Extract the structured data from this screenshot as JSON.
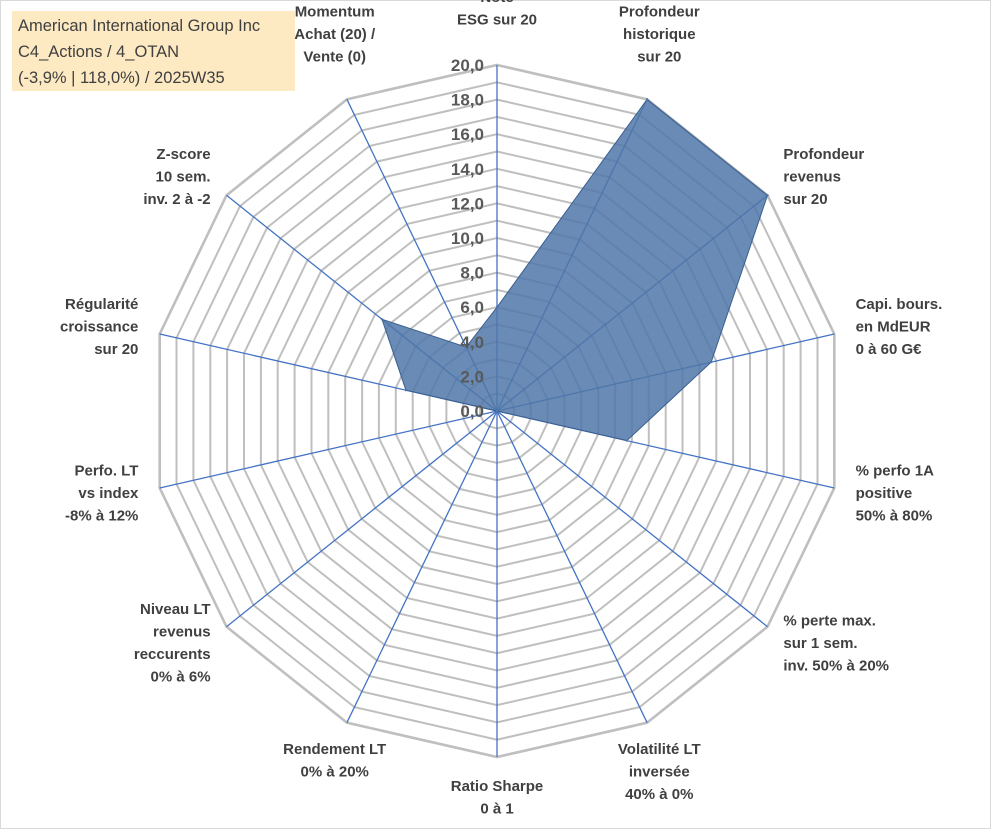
{
  "info_box": {
    "company": "American International Group Inc",
    "classification": "C4_Actions / 4_OTAN",
    "period": "(-3,9% | 118,0%) / 2025W35"
  },
  "chart_data": {
    "type": "radar",
    "title": "",
    "rlim": [
      0,
      20
    ],
    "r_ticks": [
      "0,0",
      "2,0",
      "4,0",
      "6,0",
      "8,0",
      "10,0",
      "12,0",
      "14,0",
      "16,0",
      "18,0",
      "20,0"
    ],
    "grid": true,
    "axes": [
      [
        "Note",
        "ESG sur 20"
      ],
      [
        "Profondeur",
        "historique",
        "sur 20"
      ],
      [
        "Profondeur",
        "revenus",
        "sur 20"
      ],
      [
        "Capi. bours.",
        "en MdEUR",
        "0 à 60 G€"
      ],
      [
        "% perfo 1A",
        "positive",
        "50% à 80%"
      ],
      [
        "% perte max.",
        "sur 1 sem.",
        "inv. 50% à 20%"
      ],
      [
        "Volatilité LT",
        "inversée",
        "40% à 0%"
      ],
      [
        "Ratio Sharpe",
        "0 à 1"
      ],
      [
        "Rendement LT",
        "0% à 20%"
      ],
      [
        "Niveau LT",
        "revenus",
        "reccurents",
        "0% à 6%"
      ],
      [
        "Perfo. LT",
        "vs index",
        "-8% à 12%"
      ],
      [
        "Régularité",
        "croissance",
        "sur 20"
      ],
      [
        "Z-score",
        "10 sem.",
        "inv. 2 à -2"
      ],
      [
        "Momentum",
        "Achat (20) /",
        "Vente (0)"
      ]
    ],
    "series": [
      {
        "values": [
          6.0,
          20.0,
          20.0,
          12.7,
          7.7,
          0.0,
          0.0,
          0.0,
          0.0,
          0.0,
          0.0,
          5.4,
          8.5,
          4.1
        ],
        "color": "#4f77a8"
      }
    ]
  }
}
